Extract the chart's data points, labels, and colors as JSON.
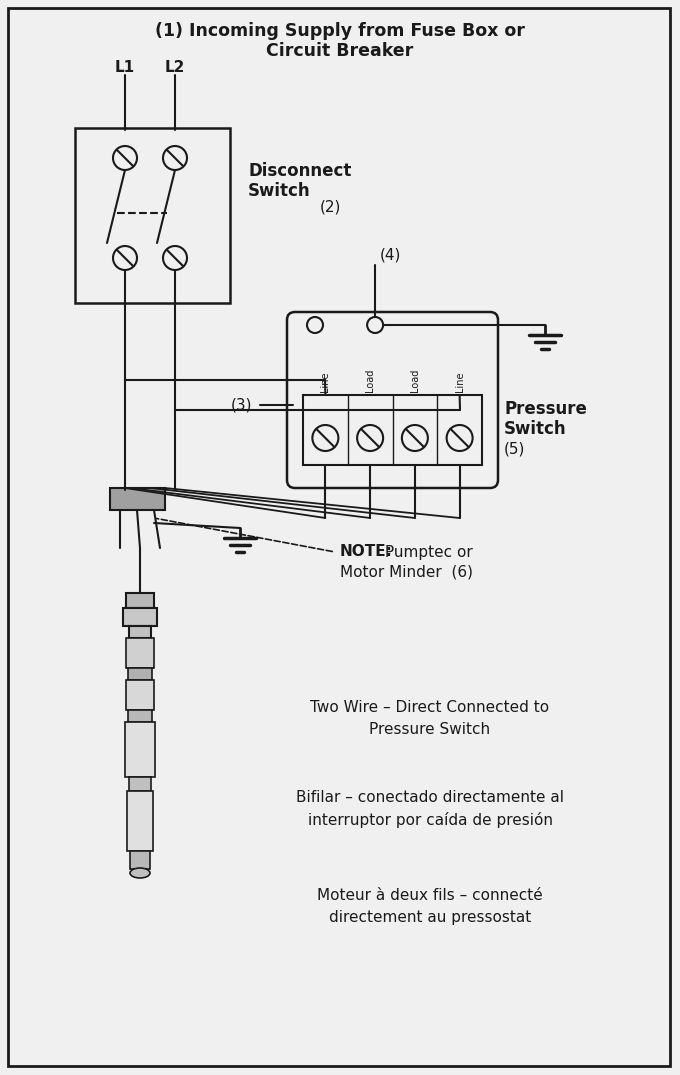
{
  "bg_color": "#f0f0f0",
  "line_color": "#1a1a1a",
  "title_line1": "(1) Incoming Supply from Fuse Box or",
  "title_line2": "Circuit Breaker",
  "label_L1": "L1",
  "label_L2": "L2",
  "label_disconnect": "Disconnect",
  "label_switch": "Switch",
  "label_disconnect_num": "(2)",
  "label_3": "(3)",
  "label_4": "(4)",
  "label_pressure": "Pressure",
  "label_switch2": "Switch",
  "label_pressure_num": "(5)",
  "label_note_bold": "NOTE:",
  "label_note_rest": " Pumptec or",
  "label_note2": "Motor Minder  (6)",
  "text1_line1": "Two Wire – Direct Connected to",
  "text1_line2": "Pressure Switch",
  "text2_line1": "Bifilar – conectado directamente al",
  "text2_line2": "interruptor por caída de presión",
  "text3_line1": "Moteur à deux fils – connecté",
  "text3_line2": "directement au pressostat",
  "font_size_title": 12.5,
  "font_size_label": 11,
  "font_size_small": 8.5,
  "font_size_text": 11,
  "term_labels": [
    "Line",
    "Load",
    "Load",
    "Line"
  ]
}
